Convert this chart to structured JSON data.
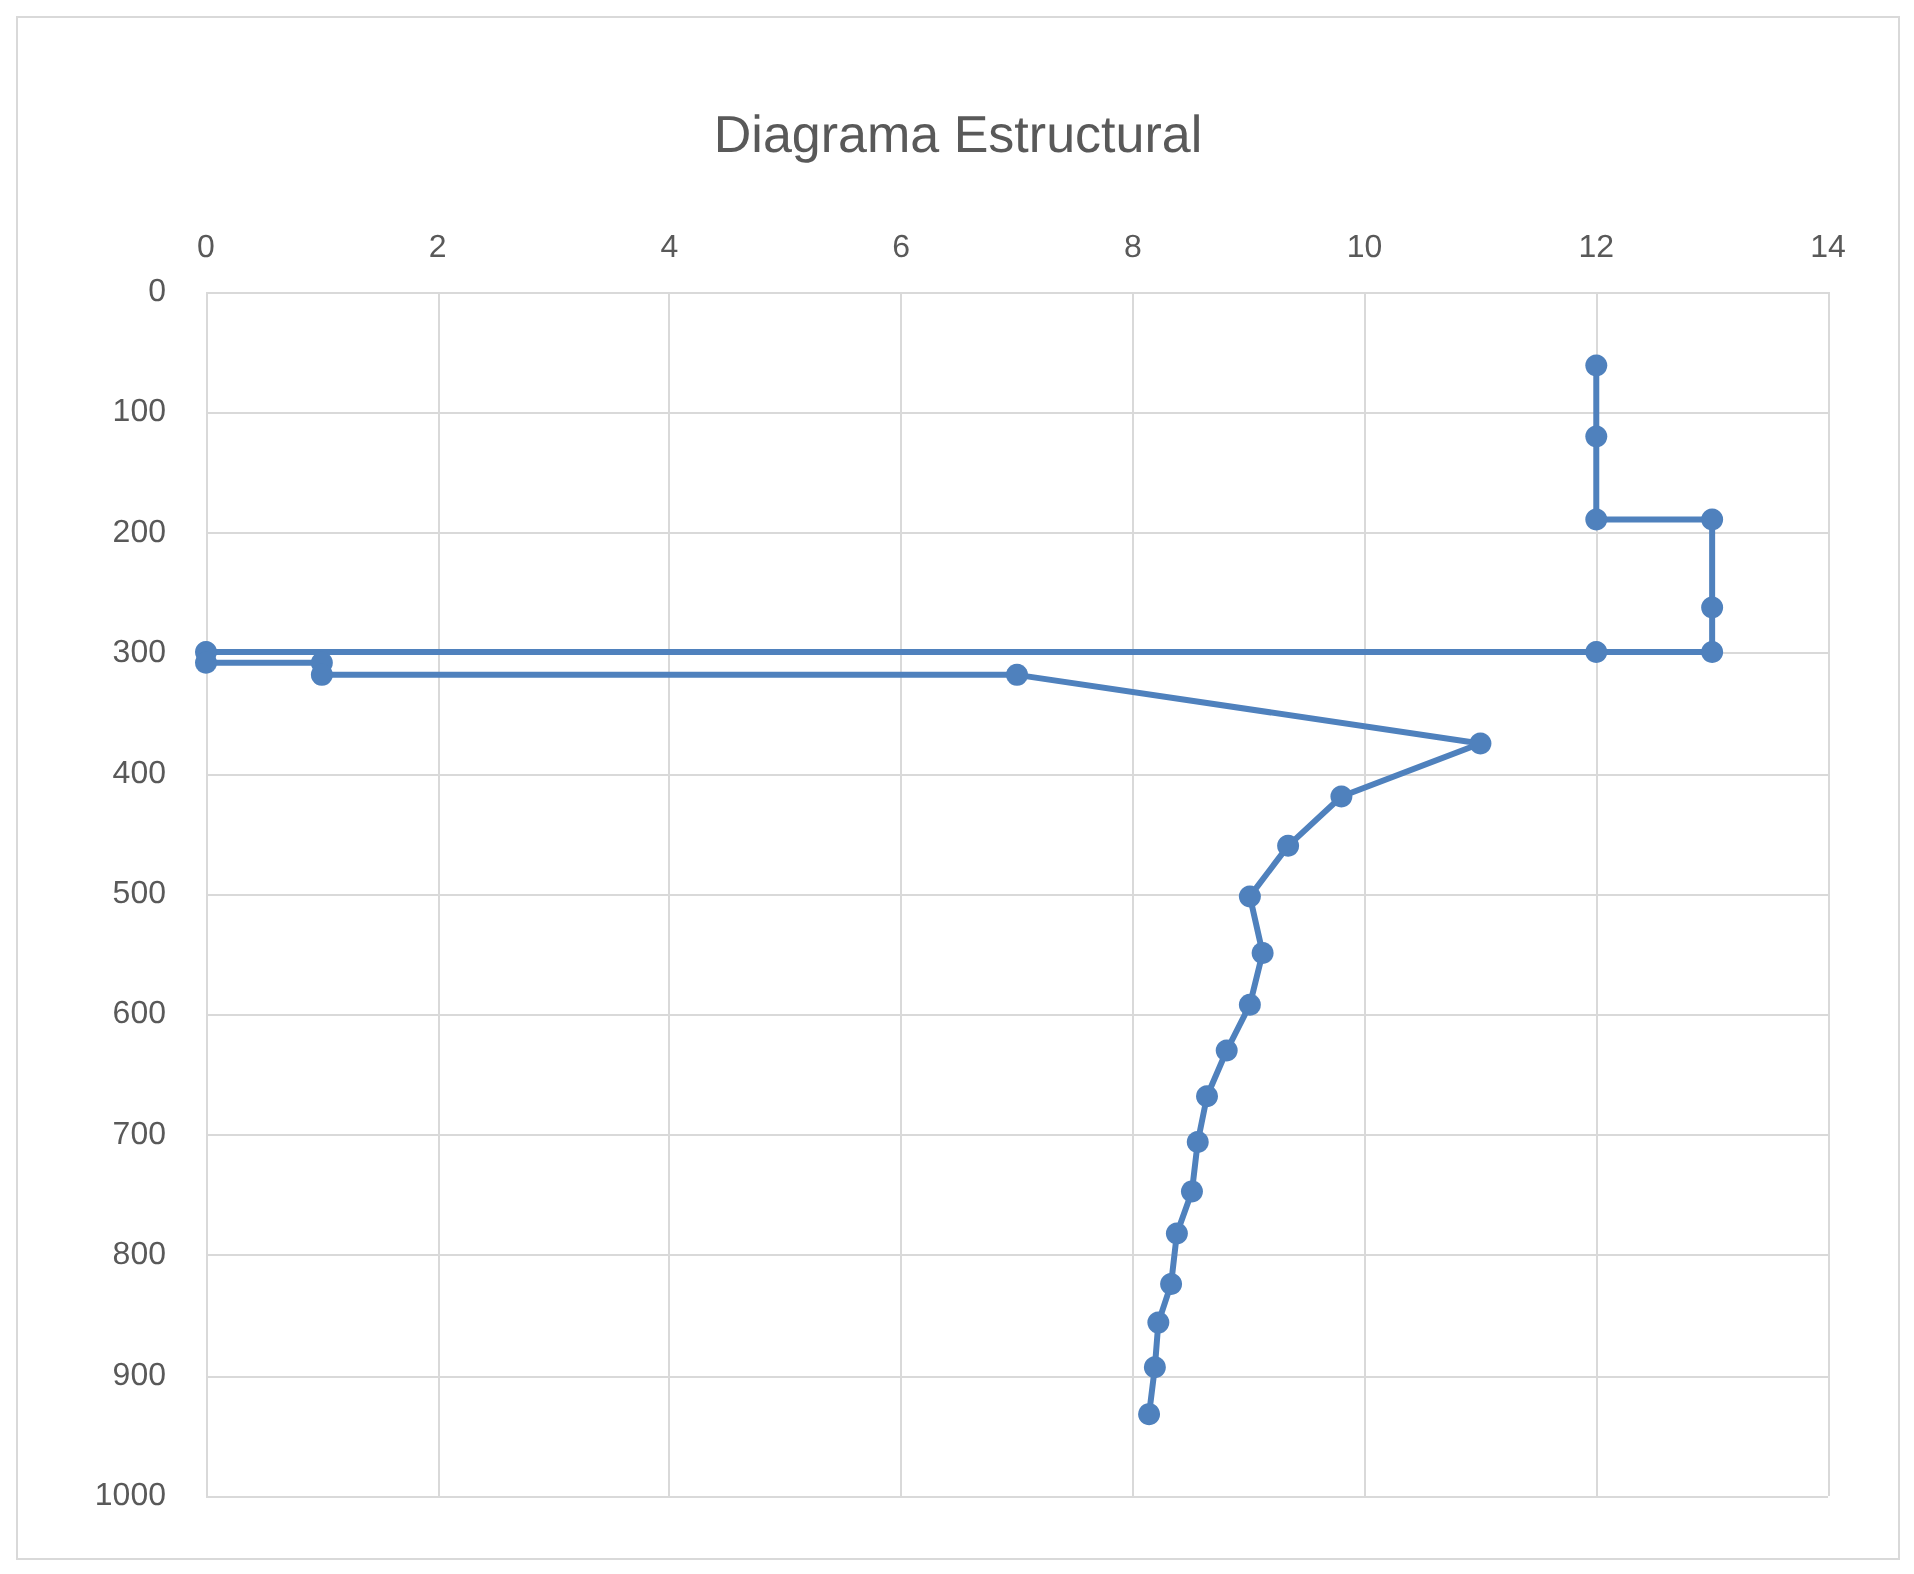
{
  "chart_data": {
    "type": "line",
    "title": "Diagrama Estructural",
    "series": [
      {
        "color": "#4f81bd",
        "x": [
          12,
          12,
          12,
          13,
          13,
          13,
          12,
          0,
          0,
          1,
          1,
          7,
          11,
          9.8,
          9.34,
          9.01,
          9.12,
          9.01,
          8.81,
          8.64,
          8.56,
          8.51,
          8.38,
          8.33,
          8.22,
          8.19,
          8.14
        ],
        "values": [
          61,
          120,
          189,
          189,
          262,
          299,
          299,
          299,
          308,
          308,
          318,
          318,
          375,
          419,
          460,
          502,
          549,
          592,
          630,
          668,
          706,
          747,
          782,
          824,
          856,
          893,
          932
        ]
      }
    ],
    "xlim": [
      0,
      14
    ],
    "xticks": [
      0,
      2,
      4,
      6,
      8,
      10,
      12,
      14
    ],
    "ylim": [
      1000,
      0
    ],
    "yticks": [
      0,
      100,
      200,
      300,
      400,
      500,
      600,
      700,
      800,
      900,
      1000
    ],
    "grid": true,
    "marker": "circle",
    "line_style": "solid"
  }
}
